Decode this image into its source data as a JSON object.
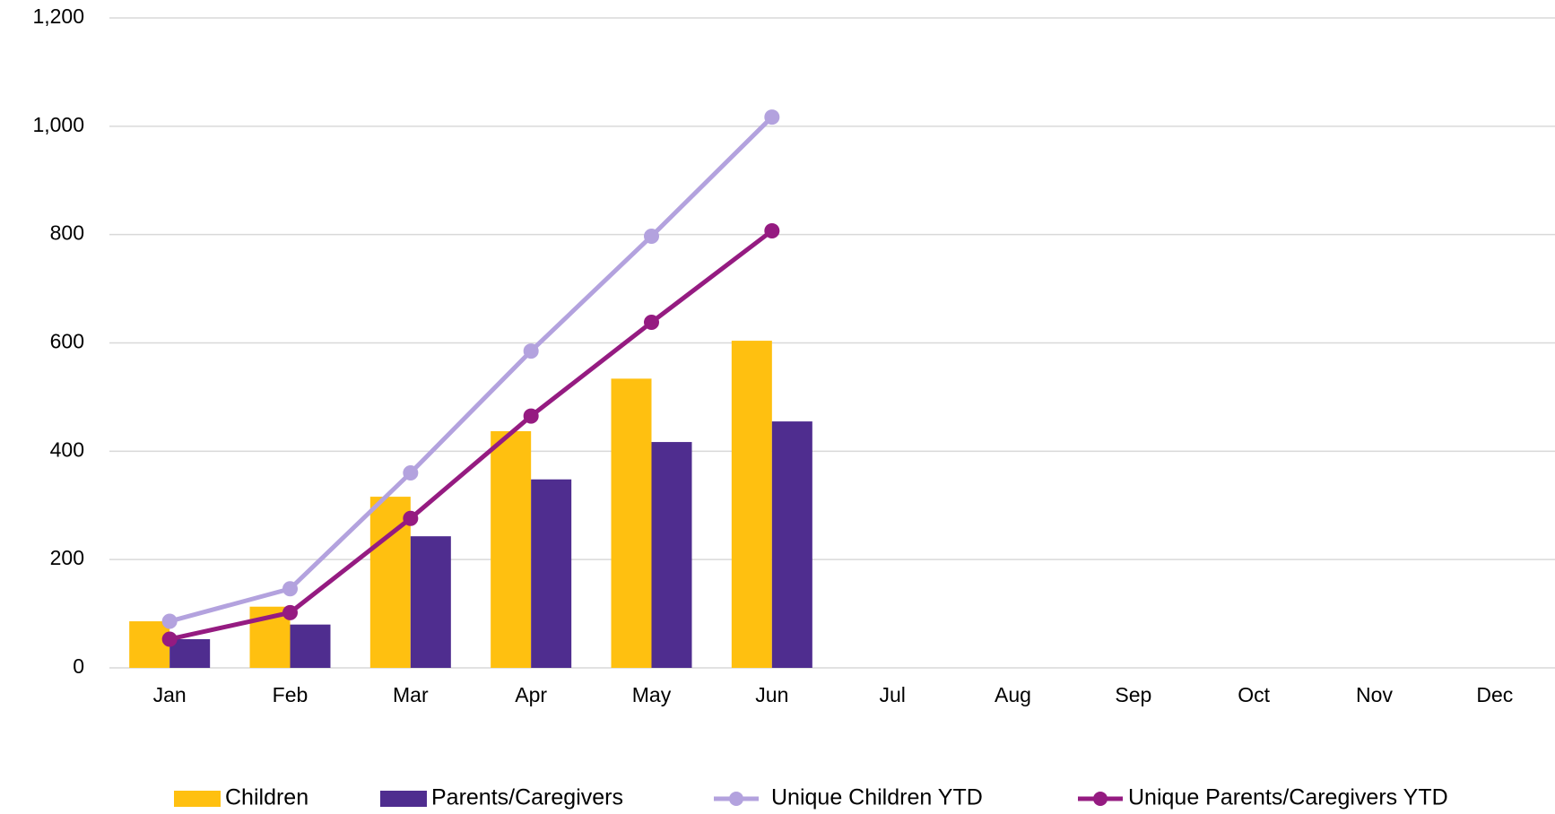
{
  "chart_data": {
    "type": "bar-line",
    "categories": [
      "Jan",
      "Feb",
      "Mar",
      "Apr",
      "May",
      "Jun",
      "Jul",
      "Aug",
      "Sep",
      "Oct",
      "Nov",
      "Dec"
    ],
    "series": [
      {
        "name": "Children",
        "type": "bar",
        "color": "#FFC010",
        "values": [
          86,
          113,
          316,
          437,
          534,
          604,
          null,
          null,
          null,
          null,
          null,
          null
        ]
      },
      {
        "name": "Parents/Caregivers",
        "type": "bar",
        "color": "#4F2D8F",
        "values": [
          53,
          80,
          243,
          348,
          417,
          455,
          null,
          null,
          null,
          null,
          null,
          null
        ]
      },
      {
        "name": "Unique Children YTD",
        "type": "line",
        "color": "#B3A2DE",
        "values": [
          86,
          146,
          360,
          585,
          797,
          1017,
          null,
          null,
          null,
          null,
          null,
          null
        ]
      },
      {
        "name": "Unique Parents/Caregivers YTD",
        "type": "line",
        "color": "#951B81",
        "values": [
          53,
          102,
          276,
          465,
          638,
          807,
          null,
          null,
          null,
          null,
          null,
          null
        ]
      }
    ],
    "ylim": [
      0,
      1200
    ],
    "yticks": [
      0,
      200,
      400,
      600,
      800,
      {
        "value": 1000,
        "label": "1,000"
      },
      {
        "value": 1200,
        "label": "1,200"
      }
    ],
    "grid": true,
    "legend": "bottom"
  }
}
